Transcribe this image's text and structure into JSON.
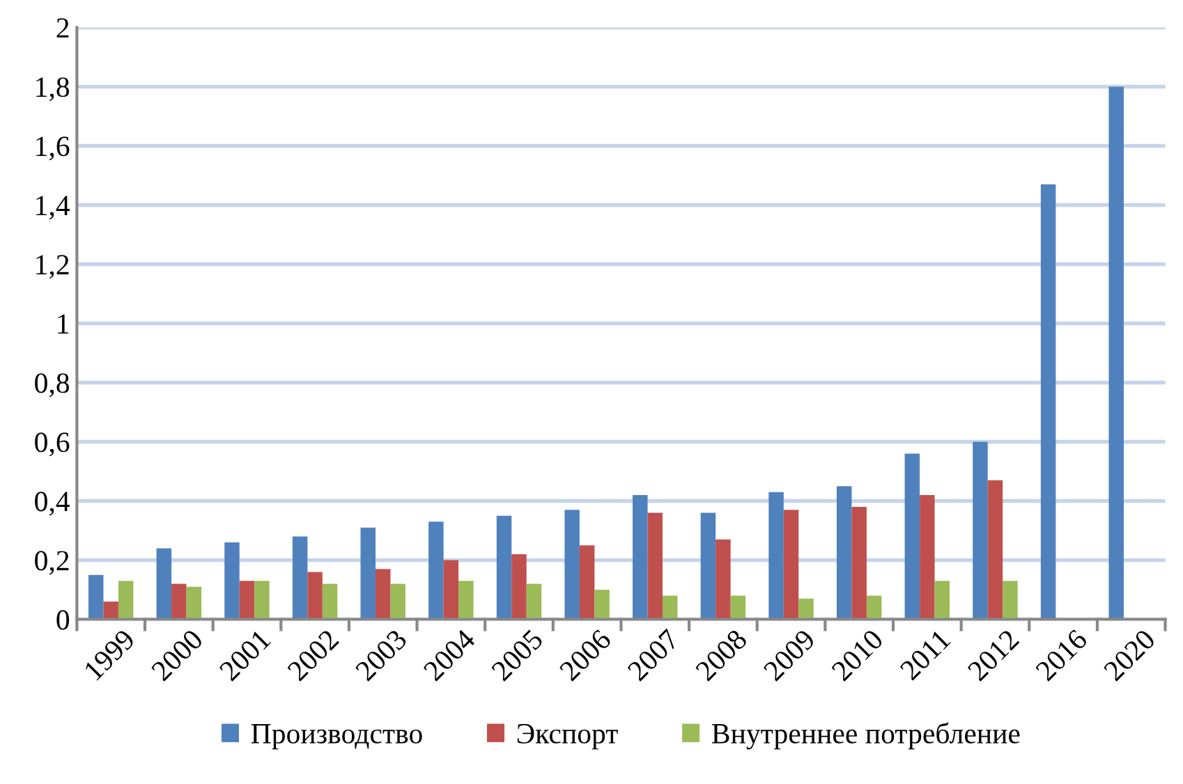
{
  "chart_data": {
    "type": "bar",
    "categories": [
      "1999",
      "2000",
      "2001",
      "2002",
      "2003",
      "2004",
      "2005",
      "2006",
      "2007",
      "2008",
      "2009",
      "2010",
      "2011",
      "2012",
      "2016",
      "2020"
    ],
    "series": [
      {
        "name": "Производство",
        "color": "#4f81bd",
        "values": [
          0.15,
          0.24,
          0.26,
          0.28,
          0.31,
          0.33,
          0.35,
          0.37,
          0.42,
          0.36,
          0.43,
          0.45,
          0.56,
          0.6,
          1.47,
          1.8
        ]
      },
      {
        "name": "Экспорт",
        "color": "#c0504d",
        "values": [
          0.06,
          0.12,
          0.13,
          0.16,
          0.17,
          0.2,
          0.22,
          0.25,
          0.36,
          0.27,
          0.37,
          0.38,
          0.42,
          0.47,
          null,
          null
        ]
      },
      {
        "name": "Внутреннее потребление",
        "color": "#9bbb59",
        "values": [
          0.13,
          0.11,
          0.13,
          0.12,
          0.12,
          0.13,
          0.12,
          0.1,
          0.08,
          0.08,
          0.07,
          0.08,
          0.13,
          0.13,
          null,
          null
        ]
      }
    ],
    "ylim": [
      0,
      2
    ],
    "yticks": [
      0,
      {
        "value": 0.2,
        "label": "0,2"
      },
      {
        "value": 0.4,
        "label": "0,4"
      },
      {
        "value": 0.6,
        "label": "0,6"
      },
      {
        "value": 0.8,
        "label": "0,8"
      },
      1,
      {
        "value": 1.2,
        "label": "1,2"
      },
      {
        "value": 1.4,
        "label": "1,4"
      },
      {
        "value": 1.6,
        "label": "1,6"
      },
      {
        "value": 1.8,
        "label": "1,8"
      },
      2
    ],
    "grid": "y",
    "legend": "bottom"
  }
}
